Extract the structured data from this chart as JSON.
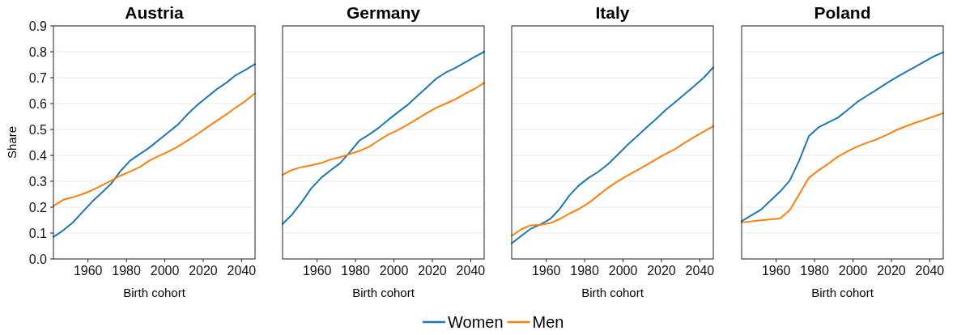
{
  "chart_data": [
    {
      "type": "line",
      "title": "Austria",
      "xlabel": "Birth cohort",
      "ylabel": "Share",
      "x": [
        1942,
        1947,
        1952,
        1957,
        1962,
        1967,
        1972,
        1977,
        1982,
        1987,
        1992,
        1997,
        2002,
        2007,
        2012,
        2017,
        2022,
        2027,
        2032,
        2037,
        2042,
        2047
      ],
      "xlim": [
        1942,
        2047
      ],
      "xticks": [
        1960,
        1980,
        2000,
        2020,
        2040
      ],
      "ylim": [
        0,
        0.9
      ],
      "yticks": [
        {
          "value": 0,
          "label": "0.0"
        },
        0.1,
        0.2,
        0.3,
        0.4,
        0.5,
        0.6,
        0.7,
        0.8,
        0.9
      ],
      "grid": "y",
      "legend": "bottom",
      "series": [
        {
          "name": "Women",
          "color": "#1f77b4",
          "values": [
            0.085,
            0.11,
            0.14,
            0.18,
            0.22,
            0.255,
            0.29,
            0.34,
            0.38,
            0.405,
            0.43,
            0.46,
            0.49,
            0.52,
            0.56,
            0.595,
            0.625,
            0.655,
            0.68,
            0.71,
            0.73,
            0.753
          ]
        },
        {
          "name": "Men",
          "color": "#ff7f0e",
          "values": [
            0.205,
            0.228,
            0.238,
            0.25,
            0.265,
            0.283,
            0.302,
            0.322,
            0.338,
            0.355,
            0.38,
            0.398,
            0.415,
            0.435,
            0.458,
            0.482,
            0.508,
            0.533,
            0.558,
            0.585,
            0.61,
            0.64
          ]
        }
      ]
    },
    {
      "type": "line",
      "title": "Germany",
      "xlabel": "Birth cohort",
      "x": [
        1942,
        1947,
        1952,
        1957,
        1962,
        1967,
        1972,
        1977,
        1982,
        1987,
        1992,
        1997,
        2002,
        2007,
        2012,
        2017,
        2022,
        2027,
        2032,
        2037,
        2042,
        2047
      ],
      "xlim": [
        1942,
        2047
      ],
      "xticks": [
        1960,
        1980,
        2000,
        2020,
        2040
      ],
      "ylim": [
        0,
        0.9
      ],
      "yticks": [
        0,
        0.1,
        0.2,
        0.3,
        0.4,
        0.5,
        0.6,
        0.7,
        0.8,
        0.9
      ],
      "tick_labels": "x",
      "grid": "y",
      "series": [
        {
          "color": "#1f77b4",
          "values": [
            0.135,
            0.172,
            0.22,
            0.273,
            0.313,
            0.342,
            0.37,
            0.412,
            0.457,
            0.48,
            0.506,
            0.537,
            0.566,
            0.594,
            0.628,
            0.662,
            0.696,
            0.72,
            0.738,
            0.759,
            0.78,
            0.8
          ]
        },
        {
          "color": "#ff7f0e",
          "values": [
            0.325,
            0.344,
            0.355,
            0.362,
            0.37,
            0.384,
            0.393,
            0.405,
            0.417,
            0.433,
            0.457,
            0.48,
            0.497,
            0.518,
            0.54,
            0.563,
            0.584,
            0.6,
            0.617,
            0.638,
            0.657,
            0.68
          ]
        }
      ]
    },
    {
      "type": "line",
      "title": "Italy",
      "xlabel": "Birth cohort",
      "x": [
        1942,
        1947,
        1952,
        1957,
        1962,
        1967,
        1972,
        1977,
        1982,
        1987,
        1992,
        1997,
        2002,
        2007,
        2012,
        2017,
        2022,
        2027,
        2032,
        2037,
        2042,
        2047
      ],
      "xlim": [
        1942,
        2047
      ],
      "xticks": [
        1960,
        1980,
        2000,
        2020,
        2040
      ],
      "ylim": [
        0,
        0.9
      ],
      "yticks": [
        0,
        0.1,
        0.2,
        0.3,
        0.4,
        0.5,
        0.6,
        0.7,
        0.8,
        0.9
      ],
      "tick_labels": "x",
      "grid": "y",
      "series": [
        {
          "color": "#1f77b4",
          "values": [
            0.06,
            0.089,
            0.117,
            0.133,
            0.154,
            0.193,
            0.245,
            0.284,
            0.313,
            0.336,
            0.365,
            0.401,
            0.438,
            0.472,
            0.506,
            0.539,
            0.574,
            0.605,
            0.636,
            0.667,
            0.7,
            0.74
          ]
        },
        {
          "color": "#ff7f0e",
          "values": [
            0.089,
            0.115,
            0.13,
            0.132,
            0.138,
            0.154,
            0.175,
            0.193,
            0.216,
            0.245,
            0.274,
            0.299,
            0.321,
            0.341,
            0.362,
            0.384,
            0.405,
            0.424,
            0.448,
            0.471,
            0.492,
            0.513
          ]
        }
      ]
    },
    {
      "type": "line",
      "title": "Poland",
      "xlabel": "Birth cohort",
      "x": [
        1942,
        1952,
        1962,
        1967,
        1972,
        1977,
        1982,
        1987,
        1992,
        1997,
        2002,
        2007,
        2012,
        2017,
        2022,
        2027,
        2032,
        2037,
        2042,
        2047
      ],
      "xlim": [
        1942,
        2047
      ],
      "xticks": [
        1960,
        1980,
        2000,
        2020,
        2040
      ],
      "ylim": [
        0,
        0.9
      ],
      "yticks": [
        0,
        0.1,
        0.2,
        0.3,
        0.4,
        0.5,
        0.6,
        0.7,
        0.8,
        0.9
      ],
      "tick_labels": "x",
      "grid": "y",
      "series": [
        {
          "color": "#1f77b4",
          "values": [
            0.146,
            0.19,
            0.26,
            0.302,
            0.38,
            0.474,
            0.508,
            0.527,
            0.545,
            0.574,
            0.605,
            0.629,
            0.652,
            0.676,
            0.699,
            0.72,
            0.74,
            0.761,
            0.782,
            0.798
          ]
        },
        {
          "color": "#ff7f0e",
          "values": [
            0.141,
            0.149,
            0.156,
            0.188,
            0.25,
            0.313,
            0.342,
            0.367,
            0.394,
            0.415,
            0.433,
            0.448,
            0.461,
            0.477,
            0.496,
            0.511,
            0.525,
            0.537,
            0.55,
            0.563
          ]
        }
      ]
    }
  ]
}
